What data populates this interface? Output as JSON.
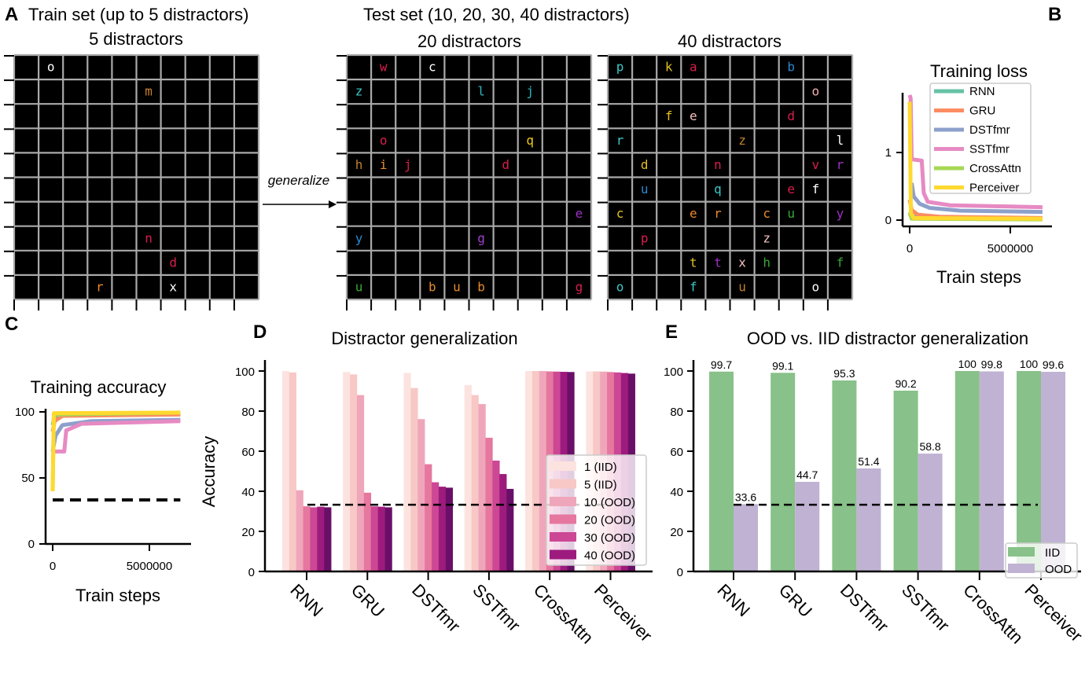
{
  "panel_labels": {
    "a": "A",
    "b": "B",
    "c": "C",
    "d": "D",
    "e": "E"
  },
  "panel_a": {
    "train_title": "Train set (up to 5 distractors)",
    "test_title": "Test set (10, 20, 30, 40 distractors)",
    "generalize_label": "generalize",
    "grids": [
      {
        "title": "5 distractors",
        "letters": [
          {
            "ch": "o",
            "r": 0,
            "c": 1,
            "color": "#ffffff"
          },
          {
            "ch": "m",
            "r": 1,
            "c": 5,
            "color": "#c8802c"
          },
          {
            "ch": "n",
            "r": 7,
            "c": 5,
            "color": "#d81e4c"
          },
          {
            "ch": "d",
            "r": 8,
            "c": 6,
            "color": "#d81e4c"
          },
          {
            "ch": "r",
            "r": 9,
            "c": 3,
            "color": "#e88a2c"
          },
          {
            "ch": "x",
            "r": 9,
            "c": 6,
            "color": "#ffffff"
          }
        ]
      },
      {
        "title": "20 distractors",
        "letters": [
          {
            "ch": "w",
            "r": 0,
            "c": 1,
            "color": "#d81e4c"
          },
          {
            "ch": "c",
            "r": 0,
            "c": 3,
            "color": "#ffffff"
          },
          {
            "ch": "z",
            "r": 1,
            "c": 0,
            "color": "#3cc8c8"
          },
          {
            "ch": "l",
            "r": 1,
            "c": 5,
            "color": "#2ab8c0"
          },
          {
            "ch": "j",
            "r": 1,
            "c": 7,
            "color": "#2ab8c0"
          },
          {
            "ch": "o",
            "r": 3,
            "c": 1,
            "color": "#d81e4c"
          },
          {
            "ch": "q",
            "r": 3,
            "c": 7,
            "color": "#f0cc10"
          },
          {
            "ch": "h",
            "r": 4,
            "c": 0,
            "color": "#c0802c"
          },
          {
            "ch": "i",
            "r": 4,
            "c": 1,
            "color": "#e88a2c"
          },
          {
            "ch": "j",
            "r": 4,
            "c": 2,
            "color": "#d81e4c"
          },
          {
            "ch": "d",
            "r": 4,
            "c": 6,
            "color": "#d81e4c"
          },
          {
            "ch": "e",
            "r": 6,
            "c": 9,
            "color": "#a030c8"
          },
          {
            "ch": "y",
            "r": 7,
            "c": 0,
            "color": "#2a88d0"
          },
          {
            "ch": "g",
            "r": 7,
            "c": 5,
            "color": "#a040d0"
          },
          {
            "ch": "u",
            "r": 9,
            "c": 0,
            "color": "#38a838"
          },
          {
            "ch": "b",
            "r": 9,
            "c": 3,
            "color": "#e88a2c"
          },
          {
            "ch": "u",
            "r": 9,
            "c": 4,
            "color": "#e88a2c"
          },
          {
            "ch": "b",
            "r": 9,
            "c": 5,
            "color": "#e88a2c"
          },
          {
            "ch": "g",
            "r": 9,
            "c": 9,
            "color": "#d81e4c"
          }
        ]
      },
      {
        "title": "40 distractors",
        "letters": [
          {
            "ch": "p",
            "r": 0,
            "c": 0,
            "color": "#3cc8c8"
          },
          {
            "ch": "k",
            "r": 0,
            "c": 2,
            "color": "#e0c020"
          },
          {
            "ch": "a",
            "r": 0,
            "c": 3,
            "color": "#d81e4c"
          },
          {
            "ch": "b",
            "r": 0,
            "c": 7,
            "color": "#2a88d0"
          },
          {
            "ch": "o",
            "r": 1,
            "c": 8,
            "color": "#f0b0b0"
          },
          {
            "ch": "f",
            "r": 2,
            "c": 2,
            "color": "#e0c020"
          },
          {
            "ch": "e",
            "r": 2,
            "c": 3,
            "color": "#f4c0c0"
          },
          {
            "ch": "d",
            "r": 2,
            "c": 7,
            "color": "#d81e4c"
          },
          {
            "ch": "r",
            "r": 3,
            "c": 0,
            "color": "#3cc8c8"
          },
          {
            "ch": "z",
            "r": 3,
            "c": 5,
            "color": "#c0802c"
          },
          {
            "ch": "l",
            "r": 3,
            "c": 9,
            "color": "#ffffff"
          },
          {
            "ch": "d",
            "r": 4,
            "c": 1,
            "color": "#e0c020"
          },
          {
            "ch": "n",
            "r": 4,
            "c": 4,
            "color": "#d81e4c"
          },
          {
            "ch": "v",
            "r": 4,
            "c": 8,
            "color": "#d81e4c"
          },
          {
            "ch": "r",
            "r": 4,
            "c": 9,
            "color": "#a030c8"
          },
          {
            "ch": "u",
            "r": 5,
            "c": 1,
            "color": "#2a88d0"
          },
          {
            "ch": "q",
            "r": 5,
            "c": 4,
            "color": "#3cc8c8"
          },
          {
            "ch": "e",
            "r": 5,
            "c": 7,
            "color": "#d81e4c"
          },
          {
            "ch": "f",
            "r": 5,
            "c": 8,
            "color": "#ffffff"
          },
          {
            "ch": "c",
            "r": 6,
            "c": 0,
            "color": "#e0c020"
          },
          {
            "ch": "e",
            "r": 6,
            "c": 3,
            "color": "#e88a2c"
          },
          {
            "ch": "r",
            "r": 6,
            "c": 4,
            "color": "#e88a2c"
          },
          {
            "ch": "c",
            "r": 6,
            "c": 6,
            "color": "#e88a2c"
          },
          {
            "ch": "u",
            "r": 6,
            "c": 7,
            "color": "#38a838"
          },
          {
            "ch": "y",
            "r": 6,
            "c": 9,
            "color": "#a030c8"
          },
          {
            "ch": "p",
            "r": 7,
            "c": 1,
            "color": "#d81e4c"
          },
          {
            "ch": "z",
            "r": 7,
            "c": 6,
            "color": "#f4c0c0"
          },
          {
            "ch": "t",
            "r": 8,
            "c": 3,
            "color": "#e0c020"
          },
          {
            "ch": "t",
            "r": 8,
            "c": 4,
            "color": "#a030c8"
          },
          {
            "ch": "x",
            "r": 8,
            "c": 5,
            "color": "#f4c0c0"
          },
          {
            "ch": "h",
            "r": 8,
            "c": 6,
            "color": "#38a838"
          },
          {
            "ch": "f",
            "r": 8,
            "c": 9,
            "color": "#38a838"
          },
          {
            "ch": "o",
            "r": 9,
            "c": 0,
            "color": "#3cc8c8"
          },
          {
            "ch": "f",
            "r": 9,
            "c": 3,
            "color": "#3cc8c8"
          },
          {
            "ch": "u",
            "r": 9,
            "c": 5,
            "color": "#c0802c"
          },
          {
            "ch": "o",
            "r": 9,
            "c": 8,
            "color": "#ffffff"
          }
        ]
      }
    ]
  },
  "chart_data": [
    {
      "id": "training-loss",
      "type": "line",
      "title": "Training loss",
      "xlabel": "Train steps",
      "ylabel": "",
      "xticks": [
        0,
        5000000
      ],
      "xtick_labels": [
        "0",
        "5000000"
      ],
      "yticks": [
        0,
        1
      ],
      "ytick_labels": [
        "0",
        "1"
      ],
      "legend": "top-right",
      "series": [
        {
          "name": "RNN",
          "color": "#66c2a5",
          "points": [
            [
              0,
              0.12
            ],
            [
              100000,
              0.06
            ],
            [
              500000,
              0.03
            ],
            [
              6600000,
              0.02
            ]
          ]
        },
        {
          "name": "GRU",
          "color": "#fc8d62",
          "points": [
            [
              0,
              0.3
            ],
            [
              100000,
              0.15
            ],
            [
              400000,
              0.08
            ],
            [
              1500000,
              0.05
            ],
            [
              6600000,
              0.03
            ]
          ]
        },
        {
          "name": "DSTfmr",
          "color": "#8da0cb",
          "points": [
            [
              100000,
              0.55
            ],
            [
              200000,
              0.35
            ],
            [
              500000,
              0.24
            ],
            [
              1000000,
              0.18
            ],
            [
              2500000,
              0.14
            ],
            [
              6600000,
              0.12
            ]
          ]
        },
        {
          "name": "SSTfmr",
          "color": "#e78ac3",
          "points": [
            [
              0,
              1.85
            ],
            [
              50000,
              1.8
            ],
            [
              100000,
              0.9
            ],
            [
              600000,
              0.88
            ],
            [
              700000,
              0.4
            ],
            [
              900000,
              0.27
            ],
            [
              2000000,
              0.22
            ],
            [
              6600000,
              0.19
            ]
          ]
        },
        {
          "name": "CrossAttn",
          "color": "#a6d854",
          "points": [
            [
              0,
              0.1
            ],
            [
              100000,
              0.02
            ],
            [
              6600000,
              0.01
            ]
          ]
        },
        {
          "name": "Perceiver",
          "color": "#ffd92f",
          "points": [
            [
              0,
              1.75
            ],
            [
              60000,
              0.1
            ],
            [
              200000,
              0.03
            ],
            [
              6600000,
              0.02
            ]
          ]
        }
      ]
    },
    {
      "id": "training-accuracy",
      "type": "line",
      "title": "Training accuracy",
      "xlabel": "Train steps",
      "ylabel": "",
      "xticks": [
        0,
        5000000
      ],
      "xtick_labels": [
        "0",
        "5000000"
      ],
      "yticks": [
        0,
        50,
        100
      ],
      "ytick_labels": [
        "0",
        "50",
        "100"
      ],
      "chance_line": 33.3,
      "series": [
        {
          "name": "RNN",
          "color": "#66c2a5",
          "points": [
            [
              0,
              90
            ],
            [
              100000,
              97
            ],
            [
              500000,
              98
            ],
            [
              6600000,
              98.5
            ]
          ]
        },
        {
          "name": "GRU",
          "color": "#fc8d62",
          "points": [
            [
              0,
              85
            ],
            [
              100000,
              93
            ],
            [
              500000,
              97
            ],
            [
              6600000,
              98
            ]
          ]
        },
        {
          "name": "DSTfmr",
          "color": "#8da0cb",
          "points": [
            [
              0,
              70
            ],
            [
              150000,
              82
            ],
            [
              500000,
              90
            ],
            [
              2000000,
              93
            ],
            [
              6600000,
              94
            ]
          ]
        },
        {
          "name": "SSTfmr",
          "color": "#e78ac3",
          "points": [
            [
              0,
              70
            ],
            [
              600000,
              70
            ],
            [
              700000,
              86
            ],
            [
              1500000,
              91
            ],
            [
              6600000,
              93
            ]
          ]
        },
        {
          "name": "CrossAttn",
          "color": "#a6d854",
          "points": [
            [
              0,
              40
            ],
            [
              60000,
              98
            ],
            [
              6600000,
              99.5
            ]
          ]
        },
        {
          "name": "Perceiver",
          "color": "#ffd92f",
          "points": [
            [
              0,
              40
            ],
            [
              60000,
              99
            ],
            [
              6600000,
              99.5
            ]
          ]
        }
      ]
    },
    {
      "id": "distractor-generalization",
      "type": "bar",
      "title": "Distractor generalization",
      "xlabel": "",
      "ylabel": "Accuracy",
      "ylim": [
        0,
        100
      ],
      "yticks": [
        0,
        20,
        40,
        60,
        80,
        100
      ],
      "categories": [
        "RNN",
        "GRU",
        "DSTfmr",
        "SSTfmr",
        "CrossAttn",
        "Perceiver"
      ],
      "legend": "bottom-right",
      "chance_line": 33.3,
      "series": [
        {
          "name": "1 (IID)",
          "color": "#fce3df",
          "values": [
            100,
            99.5,
            99,
            93,
            100,
            99.8
          ]
        },
        {
          "name": "5 (IID)",
          "color": "#f7c8c6",
          "values": [
            99.3,
            98.3,
            91.5,
            88,
            100,
            99.8
          ]
        },
        {
          "name": "10 (OOD)",
          "color": "#f0a6ba",
          "values": [
            40.5,
            88,
            76,
            83.5,
            100,
            99.7
          ]
        },
        {
          "name": "20 (OOD)",
          "color": "#e6779f",
          "values": [
            32.5,
            39.3,
            53.5,
            66.7,
            99.8,
            99.5
          ]
        },
        {
          "name": "30 (OOD)",
          "color": "#cc4794",
          "values": [
            32,
            32.5,
            44.5,
            55.3,
            99.7,
            99.3
          ]
        },
        {
          "name": "40 (OOD)",
          "color": "#9e1b7e",
          "values": [
            32.3,
            32.3,
            42.3,
            48.6,
            99.6,
            99
          ]
        },
        {
          "color": "#6a0f68",
          "values": [
            32,
            32,
            41.8,
            41.2,
            99.5,
            98.7
          ]
        }
      ]
    },
    {
      "id": "ood-vs-iid",
      "type": "bar",
      "title": "OOD vs. IID distractor generalization",
      "xlabel": "",
      "ylabel": "",
      "ylim": [
        0,
        100
      ],
      "yticks": [
        0,
        20,
        40,
        60,
        80,
        100
      ],
      "categories": [
        "RNN",
        "GRU",
        "DSTfmr",
        "SSTfmr",
        "CrossAttn",
        "Perceiver"
      ],
      "legend": "bottom-right",
      "chance_line": 33.3,
      "series": [
        {
          "name": "IID",
          "color": "#88c189",
          "values": [
            99.7,
            99.1,
            95.3,
            90.2,
            100,
            100
          ],
          "labels": [
            "99.7",
            "99.1",
            "95.3",
            "90.2",
            "100",
            "100"
          ]
        },
        {
          "name": "OOD",
          "color": "#c0b2d3",
          "values": [
            33.6,
            44.7,
            51.4,
            58.8,
            99.8,
            99.6
          ],
          "labels": [
            "33.6",
            "44.7",
            "51.4",
            "58.8",
            "99.8",
            "99.6"
          ]
        }
      ]
    }
  ]
}
